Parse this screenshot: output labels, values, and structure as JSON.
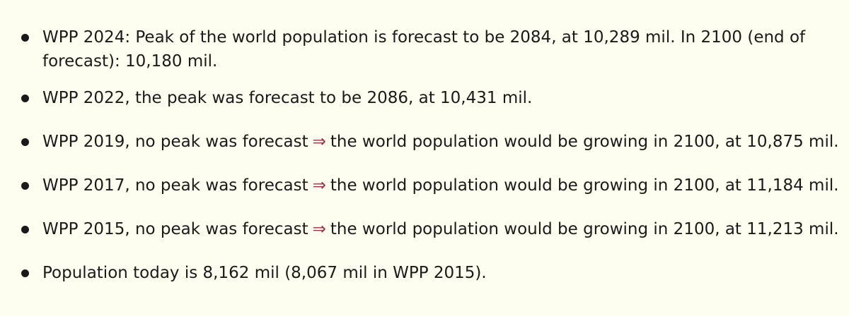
{
  "bullets": [
    {
      "text": "WPP 2024: Peak of the world population is forecast to be 2084, at 10,289 mil. In 2100 (end of forecast): 10,180 mil."
    },
    {
      "text": "WPP 2022, the peak was forecast to be 2086, at 10,431 mil."
    },
    {
      "before": "WPP 2019, no peak was forecast",
      "arrow": "⇒",
      "after": "the world population would be growing in 2100, at 10,875 mil."
    },
    {
      "before": "WPP 2017, no peak was forecast",
      "arrow": "⇒",
      "after": "the world population would be growing in 2100, at 11,184 mil."
    },
    {
      "before": "WPP 2015, no peak was forecast",
      "arrow": "⇒",
      "after": "the world population would be growing in 2100, at 11,213 mil."
    },
    {
      "text": "Population today is 8,162 mil (8,067 mil in WPP 2015)."
    }
  ]
}
